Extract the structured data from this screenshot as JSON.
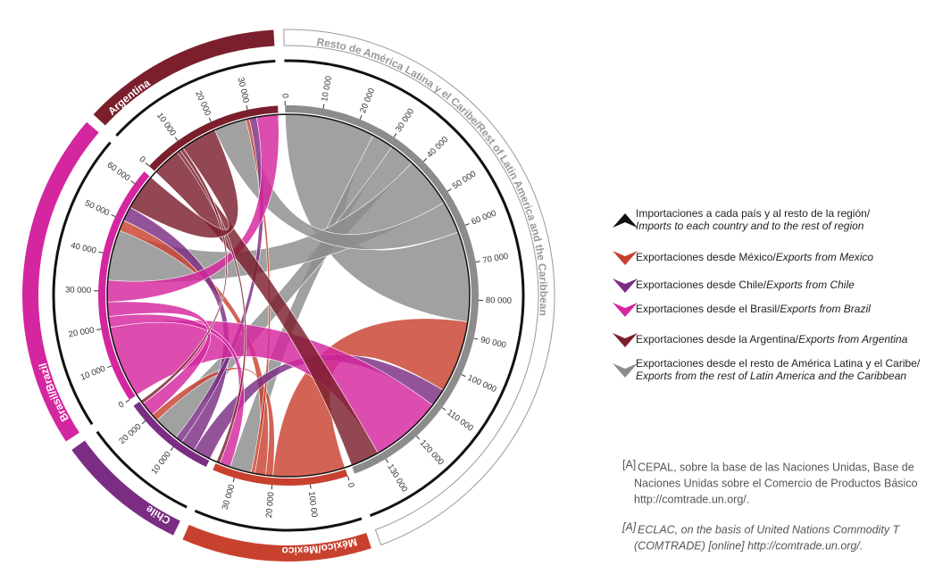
{
  "chart_data": {
    "type": "chord",
    "groups": [
      {
        "name": "Resto de América Latina y el Caribe/Rest of Latin America and the Caribbean",
        "color": "#8c8c8c",
        "ticks": [
          0,
          {
            "value": 10000,
            "label": "10 000"
          },
          {
            "value": 20000,
            "label": "20 000"
          },
          {
            "value": 30000,
            "label": "30 000"
          },
          {
            "value": 40000,
            "label": "40 000"
          },
          {
            "value": 50000,
            "label": "50 000"
          },
          {
            "value": 60000,
            "label": "60 000"
          },
          {
            "value": 70000,
            "label": "70 000"
          },
          {
            "value": 80000,
            "label": "80 000"
          },
          {
            "value": 90000,
            "label": "90 000"
          },
          {
            "value": 100000,
            "label": "100 000"
          },
          {
            "value": 110000,
            "label": "110 000"
          },
          {
            "value": 120000,
            "label": "120 000"
          },
          {
            "value": 130000,
            "label": "130 000"
          }
        ]
      },
      {
        "name": "México/Mexico",
        "color": "#c8412f",
        "ticks": [
          0,
          {
            "value": 10000,
            "label": "100 00"
          },
          {
            "value": 20000,
            "label": "20 000"
          },
          {
            "value": 30000,
            "label": "30 000"
          }
        ]
      },
      {
        "name": "Chile",
        "color": "#7b2d83",
        "ticks": [
          {
            "value": 10000,
            "label": "10 000"
          },
          {
            "value": 20000,
            "label": "20 000"
          }
        ]
      },
      {
        "name": "Brasil/Brazil",
        "color": "#d4269e",
        "ticks": [
          0,
          {
            "value": 10000,
            "label": "10 000"
          },
          {
            "value": 20000,
            "label": "20 000"
          },
          {
            "value": 30000,
            "label": "30 000"
          },
          {
            "value": 40000,
            "label": "40 000"
          },
          {
            "value": 50000,
            "label": "50 000"
          },
          {
            "value": 60000,
            "label": "60 000"
          }
        ]
      },
      {
        "name": "Argentina",
        "color": "#7b1f2c",
        "ticks": [
          0,
          {
            "value": 10000,
            "label": "10 000"
          },
          {
            "value": 20000,
            "label": "20 000"
          },
          {
            "value": 30000,
            "label": "30 000"
          }
        ]
      }
    ],
    "matrix": [
      [
        25000,
        6000,
        7000,
        14000,
        9000
      ],
      [
        20000,
        0,
        2000,
        3000,
        1000
      ],
      [
        5000,
        0,
        0,
        4000,
        2000
      ],
      [
        20000,
        3000,
        4000,
        0,
        6000
      ],
      [
        8000,
        1000,
        1000,
        10000,
        0
      ]
    ]
  },
  "legend": [
    {
      "color": "#111111",
      "es": "Importaciones a cada país y al resto de la región/",
      "en": "Imports to each country and to the rest of region"
    },
    {
      "color": "#c8412f",
      "es": "Exportaciones desde México/",
      "en": "Exports from Mexico"
    },
    {
      "color": "#7b2d83",
      "es": "Exportaciones desde Chile/",
      "en": "Exports from Chile"
    },
    {
      "color": "#d4269e",
      "es": "Exportaciones desde el Brasil/",
      "en": "Exports from Brazil"
    },
    {
      "color": "#7b1f2c",
      "es": "Exportaciones desde la Argentina/",
      "en": "Exports from Argentina"
    },
    {
      "color": "#8c8c8c",
      "es": "Exportaciones desde el resto de América Latina y el Caribe/",
      "en": "Exports from the rest of Latin America and the Caribbean"
    }
  ],
  "notes": [
    {
      "mark": "[A]",
      "lines": [
        "CEPAL, sobre la base de las Naciones Unidas, Base de",
        "Naciones Unidas sobre el Comercio de Productos Básico",
        "http://comtrade.un.org/."
      ]
    },
    {
      "mark": "[A]",
      "lines": [
        "ECLAC, on the basis of United Nations Commodity T",
        "(COMTRADE) [online] http://comtrade.un.org/."
      ]
    }
  ]
}
